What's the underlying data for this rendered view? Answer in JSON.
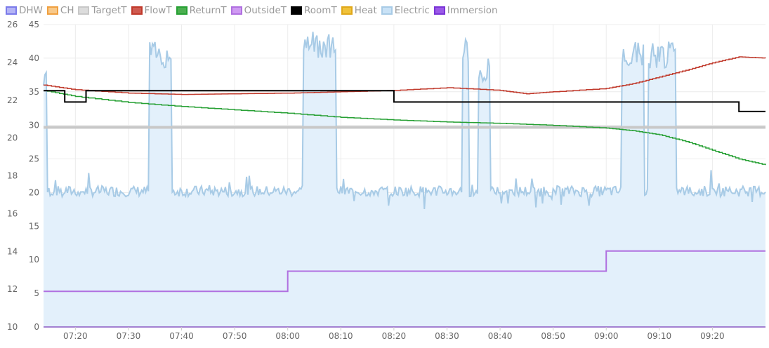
{
  "chart_data": {
    "type": "line",
    "legend_position": "top-left",
    "grid": true,
    "legend": [
      {
        "name": "DHW",
        "color": "#7b7bea",
        "fill": "#b4b4f5"
      },
      {
        "name": "CH",
        "color": "#f0a040",
        "fill": "#f8c98a"
      },
      {
        "name": "TargetT",
        "color": "#c8c8c8",
        "fill": "#dcdcdc"
      },
      {
        "name": "FlowT",
        "color": "#c0392b",
        "fill": "#cf5a50"
      },
      {
        "name": "ReturnT",
        "color": "#27a034",
        "fill": "#4caf50"
      },
      {
        "name": "OutsideT",
        "color": "#b070e0",
        "fill": "#cf9af2"
      },
      {
        "name": "RoomT",
        "color": "#000000",
        "fill": "#000000"
      },
      {
        "name": "Heat",
        "color": "#e0a81a",
        "fill": "#f0c23a"
      },
      {
        "name": "Electric",
        "color": "#a8cbe6",
        "fill": "#c9e2f6"
      },
      {
        "name": "Immersion",
        "color": "#7a35d6",
        "fill": "#9b59e8"
      }
    ],
    "x_ticks": [
      "07:20",
      "07:30",
      "07:40",
      "07:50",
      "08:00",
      "08:10",
      "08:20",
      "08:30",
      "08:40",
      "08:50",
      "09:00",
      "09:10",
      "09:20"
    ],
    "xlim": [
      "07:14",
      "09:30"
    ],
    "y_left": {
      "ticks": [
        "10",
        "12",
        "14",
        "16",
        "18",
        "20",
        "22",
        "24",
        "26"
      ],
      "lim": [
        10,
        26
      ]
    },
    "y_right": {
      "ticks": [
        "0",
        "5",
        "10",
        "15",
        "20",
        "25",
        "30",
        "35",
        "40",
        "45"
      ],
      "lim": [
        0,
        45
      ]
    },
    "series": [
      {
        "name": "RoomT",
        "axis": "left",
        "color": "#000000",
        "points": [
          [
            "07:14",
            22.5
          ],
          [
            "07:18",
            22.5
          ],
          [
            "07:18",
            21.9
          ],
          [
            "07:22",
            21.9
          ],
          [
            "07:22",
            22.5
          ],
          [
            "08:20",
            22.5
          ],
          [
            "08:20",
            21.9
          ],
          [
            "09:25",
            21.9
          ],
          [
            "09:25",
            21.4
          ],
          [
            "09:30",
            21.4
          ]
        ]
      },
      {
        "name": "FlowT",
        "axis": "right",
        "color": "#c0392b",
        "points": [
          [
            "07:14",
            36.0
          ],
          [
            "07:20",
            35.3
          ],
          [
            "07:30",
            34.8
          ],
          [
            "07:40",
            34.6
          ],
          [
            "07:50",
            34.7
          ],
          [
            "08:00",
            34.8
          ],
          [
            "08:10",
            35.0
          ],
          [
            "08:20",
            35.2
          ],
          [
            "08:30",
            35.6
          ],
          [
            "08:40",
            35.2
          ],
          [
            "08:45",
            34.7
          ],
          [
            "08:50",
            35.0
          ],
          [
            "09:00",
            35.5
          ],
          [
            "09:05",
            36.2
          ],
          [
            "09:10",
            37.2
          ],
          [
            "09:15",
            38.2
          ],
          [
            "09:20",
            39.3
          ],
          [
            "09:25",
            40.2
          ],
          [
            "09:30",
            40.0
          ]
        ]
      },
      {
        "name": "ReturnT",
        "axis": "right",
        "color": "#27a034",
        "points": [
          [
            "07:14",
            35.2
          ],
          [
            "07:20",
            34.3
          ],
          [
            "07:30",
            33.4
          ],
          [
            "07:40",
            32.8
          ],
          [
            "07:50",
            32.3
          ],
          [
            "08:00",
            31.8
          ],
          [
            "08:10",
            31.2
          ],
          [
            "08:20",
            30.8
          ],
          [
            "08:30",
            30.5
          ],
          [
            "08:40",
            30.3
          ],
          [
            "08:50",
            30.0
          ],
          [
            "09:00",
            29.6
          ],
          [
            "09:05",
            29.2
          ],
          [
            "09:10",
            28.6
          ],
          [
            "09:15",
            27.6
          ],
          [
            "09:20",
            26.3
          ],
          [
            "09:25",
            25.0
          ],
          [
            "09:30",
            24.1
          ]
        ]
      },
      {
        "name": "TargetT",
        "axis": "right",
        "color": "#c8c8c8",
        "points": [
          [
            "07:14",
            29.7
          ],
          [
            "09:30",
            29.7
          ]
        ]
      },
      {
        "name": "OutsideT",
        "axis": "right",
        "color": "#b070e0",
        "points": [
          [
            "07:14",
            5.3
          ],
          [
            "08:00",
            5.3
          ],
          [
            "08:00",
            8.3
          ],
          [
            "09:00",
            8.3
          ],
          [
            "09:00",
            11.3
          ],
          [
            "09:30",
            11.3
          ]
        ]
      },
      {
        "name": "Immersion",
        "axis": "right",
        "color": "#7a35d6",
        "points": [
          [
            "07:14",
            0
          ],
          [
            "09:30",
            0
          ]
        ]
      },
      {
        "name": "Electric",
        "axis": "right",
        "color": "#a8cbe6",
        "fill": true,
        "baseline": 20.2,
        "spike_base": 19.9,
        "spikes": [
          {
            "start": "07:14",
            "end": "07:14:30",
            "peak": 39.5
          },
          {
            "start": "07:34",
            "end": "07:38",
            "peak": 42.5
          },
          {
            "start": "08:03",
            "end": "08:09",
            "peak": 44.0
          },
          {
            "start": "08:33",
            "end": "08:34",
            "peak": 43.0
          },
          {
            "start": "08:36",
            "end": "08:38",
            "peak": 40.0
          },
          {
            "start": "09:03",
            "end": "09:07",
            "peak": 42.5
          },
          {
            "start": "09:08",
            "end": "09:13",
            "peak": 42.5
          }
        ]
      }
    ]
  }
}
